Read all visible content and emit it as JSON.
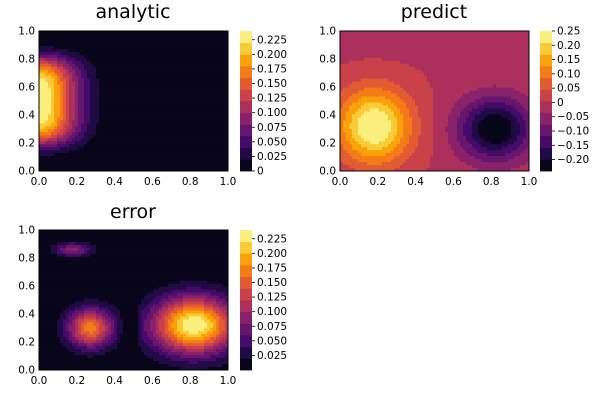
{
  "chart_data": [
    {
      "type": "heatmap",
      "subtype": "filled-contour",
      "title": "analytic",
      "colormap": "inferno",
      "xlim": [
        0,
        1
      ],
      "ylim": [
        0,
        1
      ],
      "x_ticks": [
        "0.0",
        "0.2",
        "0.4",
        "0.6",
        "0.8",
        "1.0"
      ],
      "y_ticks": [
        "0.0",
        "0.2",
        "0.4",
        "0.6",
        "0.8",
        "1.0"
      ],
      "colorbar": {
        "range": [
          0,
          0.24
        ],
        "ticks": [
          "0",
          "0.025",
          "0.050",
          "0.075",
          "0.100",
          "0.125",
          "0.150",
          "0.175",
          "0.200",
          "0.225"
        ],
        "tick_values": [
          0,
          0.025,
          0.05,
          0.075,
          0.1,
          0.125,
          0.15,
          0.175,
          0.2,
          0.225
        ]
      },
      "field": "peak ≈0.24 at (0, 0.5), decaying toward x≈0.45; zero elsewhere"
    },
    {
      "type": "heatmap",
      "subtype": "filled-contour",
      "title": "predict",
      "colormap": "inferno",
      "xlim": [
        0,
        1
      ],
      "ylim": [
        0,
        1
      ],
      "x_ticks": [
        "0.0",
        "0.2",
        "0.4",
        "0.6",
        "0.8",
        "1.0"
      ],
      "y_ticks": [
        "0.0",
        "0.2",
        "0.4",
        "0.6",
        "0.8",
        "1.0"
      ],
      "colorbar": {
        "range": [
          -0.24,
          0.25
        ],
        "ticks": [
          "0.25",
          "0.20",
          "0.15",
          "0.10",
          "0.05",
          "0",
          "−0.05",
          "−0.10",
          "−0.15",
          "−0.20"
        ],
        "tick_values": [
          0.25,
          0.2,
          0.15,
          0.1,
          0.05,
          0,
          -0.05,
          -0.1,
          -0.15,
          -0.2
        ]
      },
      "field": "positive lobe ≈0.25 at (0.18, 0.32), negative lobe ≈−0.24 at (0.82, 0.30), ≈0 along a V-shaped band near x≈0.45 and the top"
    },
    {
      "type": "heatmap",
      "subtype": "filled-contour",
      "title": "error",
      "colormap": "inferno",
      "xlim": [
        0,
        1
      ],
      "ylim": [
        0,
        1
      ],
      "x_ticks": [
        "0.0",
        "0.2",
        "0.4",
        "0.6",
        "0.8",
        "1.0"
      ],
      "y_ticks": [
        "0.0",
        "0.2",
        "0.4",
        "0.6",
        "0.8",
        "1.0"
      ],
      "colorbar": {
        "range": [
          0,
          0.24
        ],
        "ticks": [
          "0.025",
          "0.050",
          "0.075",
          "0.100",
          "0.125",
          "0.150",
          "0.175",
          "0.200",
          "0.225"
        ],
        "tick_values": [
          0.025,
          0.05,
          0.075,
          0.1,
          0.125,
          0.15,
          0.175,
          0.2,
          0.225
        ]
      },
      "field": "peaks ≈0.24 at (0.82, 0.32), ≈0.17 at (0.27, 0.30), ≈0.09 at (0.18, 0.86); near zero along x≈0.48 and bottom/top edges"
    }
  ]
}
